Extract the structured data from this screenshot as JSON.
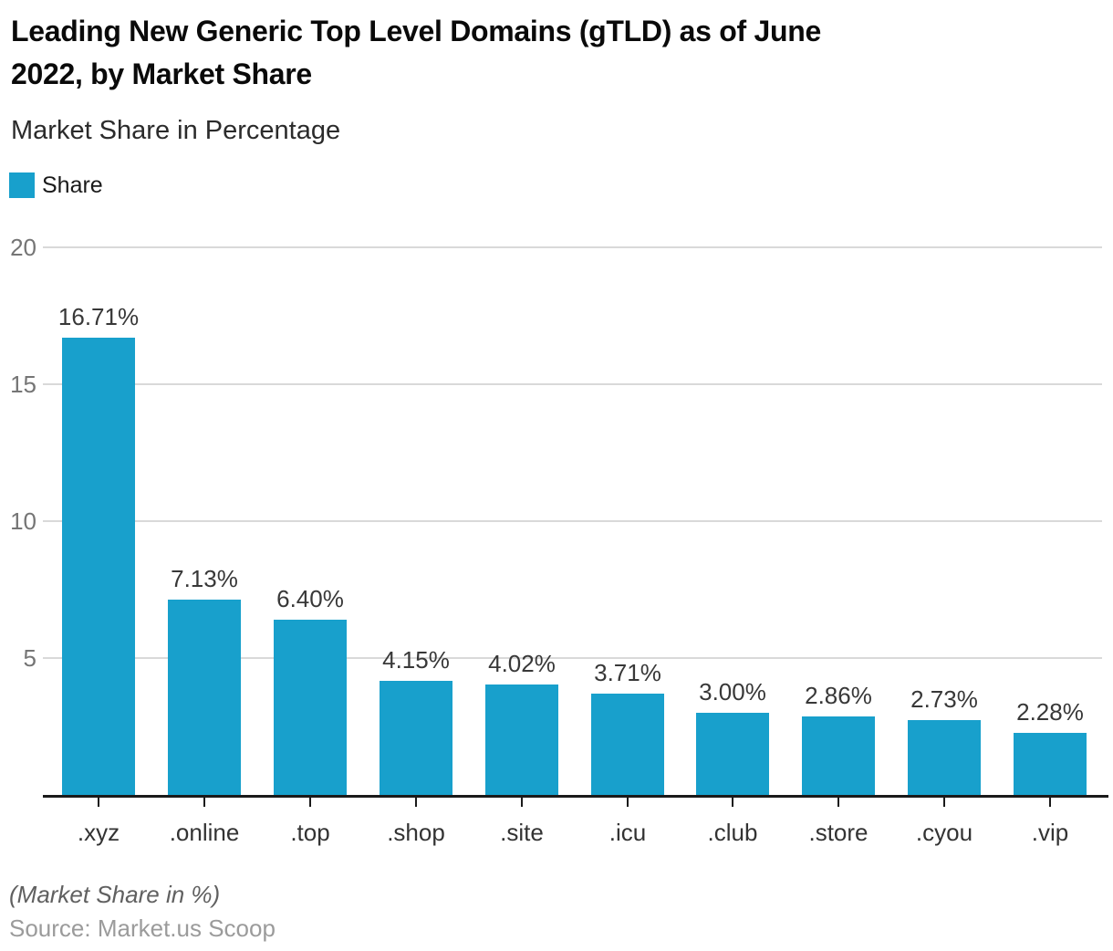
{
  "page": {
    "title_lines": [
      "Leading New Generic Top Level Domains (gTLD) as of June",
      "2022, by Market Share"
    ],
    "subtitle": "Market Share in Percentage",
    "note": "(Market Share in %)",
    "source": "Source: Market.us Scoop"
  },
  "legend": {
    "label": "Share",
    "swatch_color": "#18a0cc"
  },
  "colors": {
    "bar": "#18a0cc",
    "gridline": "#d9d9d9",
    "axis": "#1a1a1a",
    "y_label": "#757575",
    "value_label": "#383838",
    "x_label": "#333333"
  },
  "chart_data": {
    "type": "bar",
    "title": "Leading New Generic Top Level Domains (gTLD) as of June 2022, by Market Share",
    "subtitle": "Market Share in Percentage",
    "series_name": "Share",
    "categories": [
      ".xyz",
      ".online",
      ".top",
      ".shop",
      ".site",
      ".icu",
      ".club",
      ".store",
      ".cyou",
      ".vip"
    ],
    "values": [
      16.71,
      7.13,
      6.4,
      4.15,
      4.02,
      3.71,
      3.0,
      2.86,
      2.73,
      2.28
    ],
    "value_labels": [
      "16.71%",
      "7.13%",
      "6.40%",
      "4.15%",
      "4.02%",
      "3.71%",
      "3.00%",
      "2.86%",
      "2.73%",
      "2.28%"
    ],
    "xlabel": "",
    "ylabel": "Market Share in Percentage",
    "ylim": [
      0,
      20
    ],
    "y_ticks": [
      5,
      10,
      15,
      20
    ],
    "grid": true,
    "legend_position": "top-left",
    "footnote": "(Market Share in %)",
    "source": "Source: Market.us Scoop"
  }
}
